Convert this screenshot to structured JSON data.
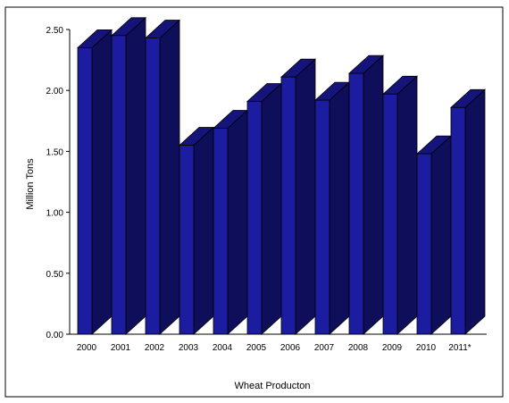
{
  "chart_data": {
    "type": "bar",
    "style": "3d-column",
    "categories": [
      "2000",
      "2001",
      "2002",
      "2003",
      "2004",
      "2005",
      "2006",
      "2007",
      "2008",
      "2009",
      "2010",
      "2011*"
    ],
    "values": [
      2.35,
      2.45,
      2.43,
      1.55,
      1.69,
      1.91,
      2.11,
      1.92,
      2.14,
      1.97,
      1.48,
      1.86
    ],
    "ylabel": "Million Tons",
    "xlabel": "Wheat Producton",
    "ylim": [
      0,
      2.5
    ],
    "yticks": [
      "0.00",
      "0.50",
      "1.00",
      "1.50",
      "2.00",
      "2.50"
    ],
    "grid": false,
    "legend": "none",
    "colors": {
      "front": "#1c1ca0",
      "side": "#0e0e5a",
      "top": "#14147a",
      "edge": "#000000"
    }
  }
}
